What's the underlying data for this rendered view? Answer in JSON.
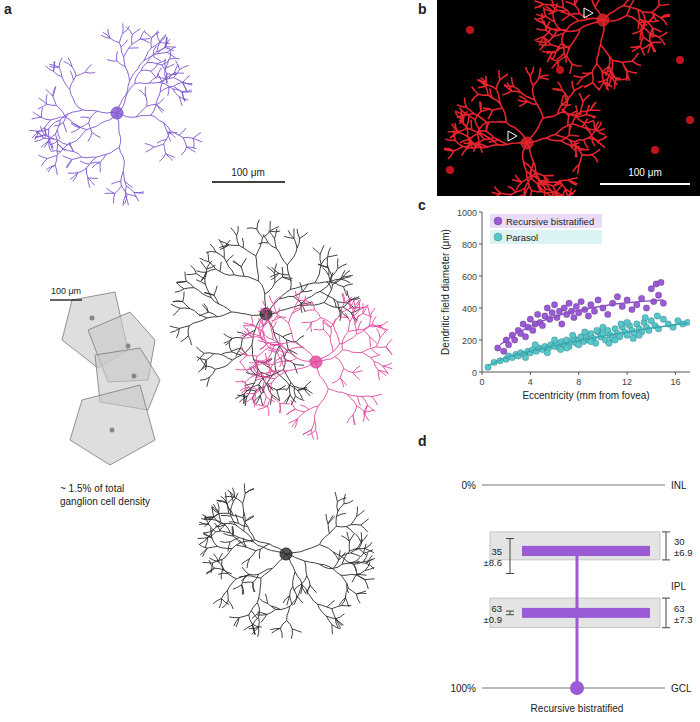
{
  "panels": {
    "a": {
      "label": "a",
      "scale_bar": "100 μm",
      "inset_scale_bar": "100 μm",
      "inset_note": [
        "~ 1.5% of total",
        "ganglion cell density"
      ]
    },
    "b": {
      "label": "b",
      "scale_bar": "100 μm"
    },
    "c": {
      "label": "c"
    },
    "d": {
      "label": "d",
      "scale": [
        {
          "value": 0,
          "label": "0%"
        },
        {
          "value": 100,
          "label": "100%"
        }
      ],
      "layers": [
        "INL",
        "IPL",
        "GCL"
      ],
      "cell": "Recursive bistratified",
      "strata": [
        {
          "left": 35,
          "left_sd": 8.6,
          "left_sd_label": "±8.6",
          "right": 30,
          "right_sd": 6.9,
          "right_sd_label": "±6.9"
        },
        {
          "left": 63,
          "left_sd": 0.9,
          "left_sd_label": "±0.9",
          "right": 63,
          "right_sd": 7.3,
          "right_sd_label": "±7.3"
        }
      ]
    }
  },
  "chart_data": {
    "type": "scatter",
    "x_label": "Eccentricity (mm from fovea)",
    "y_label": "Dendritic field diameter (μm)",
    "xlim": [
      0,
      17.2
    ],
    "ylim": [
      0,
      1000
    ],
    "xticks": [
      0,
      4,
      8,
      12,
      16
    ],
    "yticks": [
      0,
      200,
      400,
      600,
      800,
      1000
    ],
    "legend": "top-left",
    "series": [
      {
        "name": "Recursive bistratified",
        "color": "#9b5bd6",
        "marker": "circle",
        "x": [
          1.3,
          1.8,
          2.0,
          2.2,
          2.5,
          2.7,
          3.0,
          3.2,
          3.4,
          3.6,
          3.8,
          4.0,
          4.2,
          4.4,
          4.6,
          4.8,
          5.0,
          5.2,
          5.4,
          5.6,
          5.8,
          6.0,
          6.2,
          6.4,
          6.6,
          6.8,
          7.0,
          7.2,
          7.4,
          7.6,
          7.8,
          8.0,
          8.2,
          8.5,
          8.8,
          9.0,
          9.3,
          9.6,
          10.0,
          10.4,
          10.8,
          11.2,
          11.6,
          12.0,
          12.4,
          12.8,
          13.2,
          13.6,
          14.0,
          14.2,
          14.4,
          14.6,
          14.8,
          15.0
        ],
        "values": [
          150,
          130,
          200,
          170,
          230,
          200,
          260,
          240,
          300,
          220,
          280,
          330,
          260,
          300,
          360,
          310,
          290,
          350,
          400,
          330,
          370,
          420,
          340,
          380,
          300,
          400,
          360,
          430,
          380,
          340,
          410,
          370,
          440,
          390,
          350,
          420,
          380,
          450,
          400,
          360,
          430,
          470,
          410,
          450,
          390,
          420,
          460,
          400,
          520,
          440,
          550,
          480,
          560,
          430
        ]
      },
      {
        "name": "Parasol",
        "color": "#56c8cc",
        "marker": "circle",
        "x": [
          0.5,
          1.0,
          1.5,
          2.0,
          2.2,
          2.5,
          2.8,
          3.0,
          3.2,
          3.5,
          3.8,
          4.0,
          4.2,
          4.5,
          4.7,
          5.0,
          5.2,
          5.5,
          5.7,
          6.0,
          6.2,
          6.4,
          6.6,
          6.8,
          7.0,
          7.2,
          7.4,
          7.6,
          7.8,
          8.0,
          8.2,
          8.4,
          8.6,
          8.8,
          9.0,
          9.2,
          9.4,
          9.6,
          9.8,
          10.0,
          10.2,
          10.4,
          10.6,
          10.8,
          11.0,
          11.2,
          11.4,
          11.6,
          11.8,
          12.0,
          12.2,
          12.4,
          12.6,
          12.8,
          13.0,
          13.2,
          13.4,
          13.6,
          13.8,
          14.0,
          14.3,
          14.6,
          15.0,
          15.4,
          15.8,
          16.2,
          16.6,
          17.0,
          3.6,
          5.4,
          6.5,
          7.5,
          8.5,
          9.5,
          10.5,
          11.5,
          12.5,
          13.5,
          14.5,
          4.4,
          6.0,
          7.0,
          8.0,
          9.0,
          10.0,
          11.0,
          12.0,
          13.0
        ],
        "values": [
          30,
          60,
          70,
          80,
          100,
          90,
          110,
          100,
          120,
          110,
          130,
          120,
          140,
          130,
          150,
          140,
          160,
          150,
          170,
          160,
          180,
          150,
          190,
          170,
          200,
          160,
          190,
          210,
          180,
          200,
          220,
          190,
          230,
          200,
          240,
          210,
          180,
          250,
          220,
          240,
          200,
          260,
          230,
          210,
          270,
          240,
          220,
          280,
          250,
          230,
          290,
          260,
          240,
          300,
          270,
          250,
          310,
          280,
          260,
          320,
          290,
          270,
          330,
          300,
          280,
          320,
          300,
          310,
          90,
          120,
          140,
          230,
          250,
          260,
          180,
          300,
          210,
          340,
          350,
          170,
          200,
          150,
          170,
          190,
          280,
          200,
          310,
          230
        ]
      },
      {
        "type": "line",
        "color": "#8c4fc8",
        "x": [
          1.5,
          3,
          5,
          7,
          9,
          11,
          13,
          15
        ],
        "values": [
          170,
          250,
          320,
          370,
          400,
          425,
          440,
          450
        ]
      },
      {
        "type": "line",
        "color": "#3aa6ad",
        "x": [
          0.5,
          2,
          4,
          6,
          8,
          10,
          12,
          14,
          16,
          17
        ],
        "values": [
          40,
          90,
          130,
          165,
          195,
          225,
          250,
          275,
          295,
          305
        ]
      }
    ]
  }
}
